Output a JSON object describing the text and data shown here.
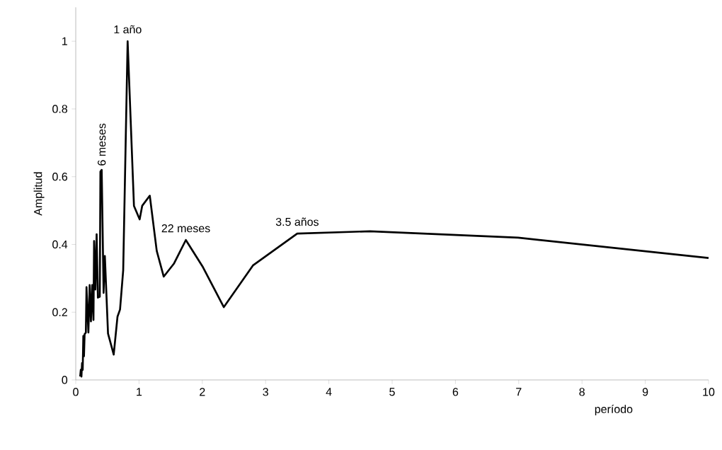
{
  "chart_data": {
    "type": "line",
    "xlabel": "período",
    "ylabel": "Amplitud",
    "x": [
      0.07,
      0.08,
      0.09,
      0.1,
      0.11,
      0.12,
      0.13,
      0.14,
      0.16,
      0.17,
      0.18,
      0.2,
      0.22,
      0.24,
      0.26,
      0.28,
      0.29,
      0.31,
      0.33,
      0.35,
      0.38,
      0.39,
      0.41,
      0.44,
      0.46,
      0.51,
      0.6,
      0.66,
      0.7,
      0.75,
      0.82,
      0.92,
      1.01,
      1.05,
      1.17,
      1.28,
      1.39,
      1.55,
      1.74,
      2.01,
      2.34,
      2.8,
      3.5,
      4.65,
      6.99,
      10
    ],
    "series": [
      {
        "color": "#000000",
        "values": [
          0.01,
          0.03,
          0.01,
          0.05,
          0.03,
          0.13,
          0.07,
          0.135,
          0.14,
          0.274,
          0.23,
          0.14,
          0.28,
          0.173,
          0.28,
          0.177,
          0.41,
          0.267,
          0.43,
          0.243,
          0.246,
          0.615,
          0.62,
          0.257,
          0.366,
          0.137,
          0.075,
          0.187,
          0.208,
          0.324,
          1.0,
          0.514,
          0.474,
          0.514,
          0.544,
          0.381,
          0.305,
          0.343,
          0.413,
          0.333,
          0.215,
          0.338,
          0.432,
          0.439,
          0.42,
          0.36
        ]
      }
    ],
    "xlim": [
      0,
      10
    ],
    "ylim": [
      0,
      1.1
    ],
    "xticks": [
      0,
      1,
      2,
      3,
      4,
      5,
      6,
      7,
      8,
      9,
      10
    ],
    "yticks": [
      0,
      0.2,
      0.4,
      0.6,
      0.8,
      1
    ],
    "grid": false,
    "marker": "none",
    "line_style": "solid",
    "annotations": [
      {
        "text": "1 año",
        "x": 0.82,
        "y": 1.0
      },
      {
        "text": "6 meses",
        "x": 0.41,
        "y": 0.62
      },
      {
        "text": "22 meses",
        "x": 1.74,
        "y": 0.413
      },
      {
        "text": "3.5 años",
        "x": 3.5,
        "y": 0.432
      }
    ]
  }
}
